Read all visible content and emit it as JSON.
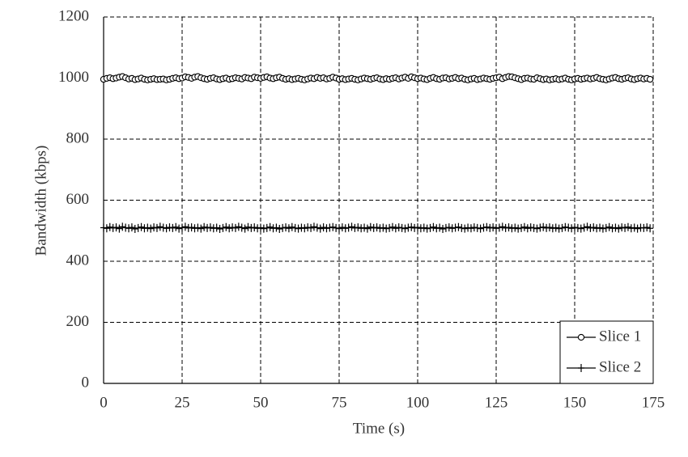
{
  "chart_data": {
    "type": "line",
    "x_label": "Time (s)",
    "y_label": "Bandwidth (kbps)",
    "xlim": [
      0,
      175
    ],
    "xticks": [
      0,
      25,
      50,
      75,
      100,
      125,
      150,
      175
    ],
    "ylim": [
      0,
      1200
    ],
    "yticks": [
      0,
      200,
      400,
      600,
      800,
      1000,
      1200
    ],
    "grid": true,
    "legend": "lower right",
    "x": [
      0,
      1,
      2,
      3,
      4,
      5,
      6,
      7,
      8,
      9,
      10,
      11,
      12,
      13,
      14,
      15,
      16,
      17,
      18,
      19,
      20,
      21,
      22,
      23,
      24,
      25,
      26,
      27,
      28,
      29,
      30,
      31,
      32,
      33,
      34,
      35,
      36,
      37,
      38,
      39,
      40,
      41,
      42,
      43,
      44,
      45,
      46,
      47,
      48,
      49,
      50,
      51,
      52,
      53,
      54,
      55,
      56,
      57,
      58,
      59,
      60,
      61,
      62,
      63,
      64,
      65,
      66,
      67,
      68,
      69,
      70,
      71,
      72,
      73,
      74,
      75,
      76,
      77,
      78,
      79,
      80,
      81,
      82,
      83,
      84,
      85,
      86,
      87,
      88,
      89,
      90,
      91,
      92,
      93,
      94,
      95,
      96,
      97,
      98,
      99,
      100,
      101,
      102,
      103,
      104,
      105,
      106,
      107,
      108,
      109,
      110,
      111,
      112,
      113,
      114,
      115,
      116,
      117,
      118,
      119,
      120,
      121,
      122,
      123,
      124,
      125,
      126,
      127,
      128,
      129,
      130,
      131,
      132,
      133,
      134,
      135,
      136,
      137,
      138,
      139,
      140,
      141,
      142,
      143,
      144,
      145,
      146,
      147,
      148,
      149,
      150,
      151,
      152,
      153,
      154,
      155,
      156,
      157,
      158,
      159,
      160,
      161,
      162,
      163,
      164,
      165,
      166,
      167,
      168,
      169,
      170,
      171,
      172,
      173,
      174
    ],
    "series": [
      {
        "name": "Slice 1",
        "color": "#000000",
        "marker": "circle",
        "values": [
          996,
          999,
          1001,
          998,
          1000,
          1003,
          1005,
          1001,
          997,
          999,
          995,
          997,
          1000,
          996,
          994,
          996,
          998,
          995,
          996,
          997,
          994,
          996,
          999,
          1001,
          998,
          1000,
          1004,
          1002,
          999,
          1003,
          1005,
          1001,
          998,
          996,
          999,
          1001,
          997,
          995,
          998,
          1000,
          996,
          998,
          1001,
          999,
          997,
          1002,
          1000,
          998,
          1003,
          1001,
          999,
          1002,
          1004,
          1000,
          998,
          1001,
          1003,
          999,
          996,
          998,
          995,
          997,
          999,
          996,
          994,
          997,
          1000,
          998,
          1002,
          999,
          1001,
          997,
          999,
          1003,
          1000,
          996,
          998,
          995,
          997,
          999,
          996,
          994,
          997,
          1000,
          998,
          996,
          999,
          1001,
          997,
          995,
          998,
          996,
          999,
          1001,
          997,
          1000,
          1003,
          999,
          1004,
          1001,
          998,
          1000,
          997,
          995,
          999,
          1002,
          998,
          996,
          1000,
          1001,
          997,
          999,
          1002,
          998,
          1000,
          996,
          994,
          997,
          999,
          995,
          997,
          1000,
          998,
          996,
          999,
          1001,
          1003,
          998,
          1002,
          1005,
          1004,
          1001,
          998,
          995,
          999,
          1000,
          997,
          996,
          1001,
          998,
          995,
          997,
          994,
          996,
          998,
          995,
          997,
          1000,
          996,
          994,
          997,
          999,
          996,
          998,
          1000,
          997,
          999,
          1002,
          998,
          996,
          994,
          997,
          1000,
          1002,
          998,
          996,
          999,
          1001,
          997,
          995,
          998,
          1000,
          997,
          999,
          996
        ]
      },
      {
        "name": "Slice 2",
        "color": "#000000",
        "marker": "plus",
        "values": [
          510,
          508,
          512,
          509,
          511,
          507,
          513,
          510,
          508,
          511,
          506,
          509,
          512,
          508,
          510,
          507,
          511,
          509,
          513,
          510,
          508,
          511,
          509,
          512,
          507,
          510,
          513,
          509,
          511,
          508,
          510,
          507,
          512,
          509,
          511,
          508,
          510,
          506,
          509,
          512,
          508,
          511,
          509,
          513,
          510,
          507,
          512,
          509,
          511,
          508,
          510,
          507,
          509,
          512,
          508,
          510,
          506,
          509,
          511,
          508,
          512,
          509,
          507,
          510,
          508,
          511,
          509,
          513,
          510,
          507,
          511,
          508,
          510,
          512,
          509,
          507,
          511,
          508,
          510,
          513,
          509,
          511,
          508,
          510,
          507,
          512,
          509,
          511,
          508,
          510,
          507,
          509,
          512,
          508,
          511,
          509,
          507,
          510,
          512,
          509,
          511,
          508,
          510,
          507,
          509,
          512,
          508,
          510,
          506,
          509,
          511,
          508,
          510,
          512,
          509,
          507,
          510,
          508,
          511,
          509,
          507,
          510,
          512,
          509,
          511,
          508,
          510,
          513,
          509,
          511,
          508,
          510,
          507,
          509,
          512,
          508,
          511,
          509,
          507,
          510,
          512,
          509,
          511,
          508,
          510,
          507,
          509,
          512,
          510,
          508,
          511,
          509,
          507,
          510,
          513,
          509,
          511,
          508,
          510,
          507,
          509,
          512,
          508,
          510,
          507,
          511,
          509,
          512,
          508,
          510,
          507,
          510,
          509,
          511,
          508
        ]
      }
    ]
  }
}
